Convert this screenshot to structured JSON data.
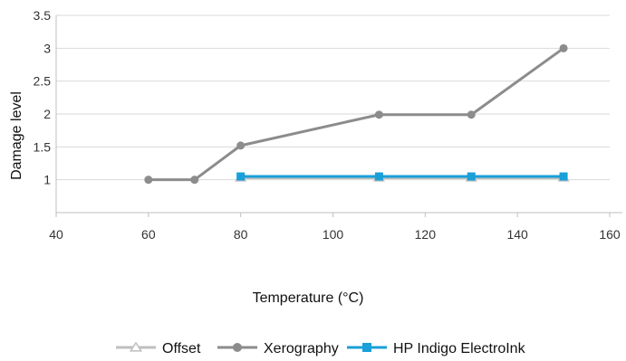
{
  "chart_data": {
    "type": "line",
    "title": "",
    "xlabel": "Temperature (°C)",
    "ylabel": "Damage level",
    "xlim": [
      40,
      160
    ],
    "ylim": [
      0.5,
      3.5
    ],
    "xticks": [
      40,
      60,
      80,
      100,
      120,
      140,
      160
    ],
    "yticks": [
      1,
      1.5,
      2,
      2.5,
      3,
      3.5
    ],
    "grid": "horizontal",
    "legend": "bottom",
    "series": [
      {
        "name": "Offset",
        "color": "#bfbfbf",
        "marker": "triangle-open",
        "x": [
          80,
          110,
          130,
          150
        ],
        "y": [
          1.03,
          1.03,
          1.03,
          1.03
        ]
      },
      {
        "name": "Xerography",
        "color": "#8c8c8c",
        "marker": "circle",
        "x": [
          60,
          70,
          80,
          110,
          130,
          150
        ],
        "y": [
          1.0,
          1.0,
          1.52,
          1.99,
          1.99,
          3.0
        ]
      },
      {
        "name": "HP Indigo ElectroInk",
        "color": "#1a9fd9",
        "marker": "square",
        "x": [
          80,
          110,
          130,
          150
        ],
        "y": [
          1.05,
          1.05,
          1.05,
          1.05
        ]
      }
    ]
  }
}
